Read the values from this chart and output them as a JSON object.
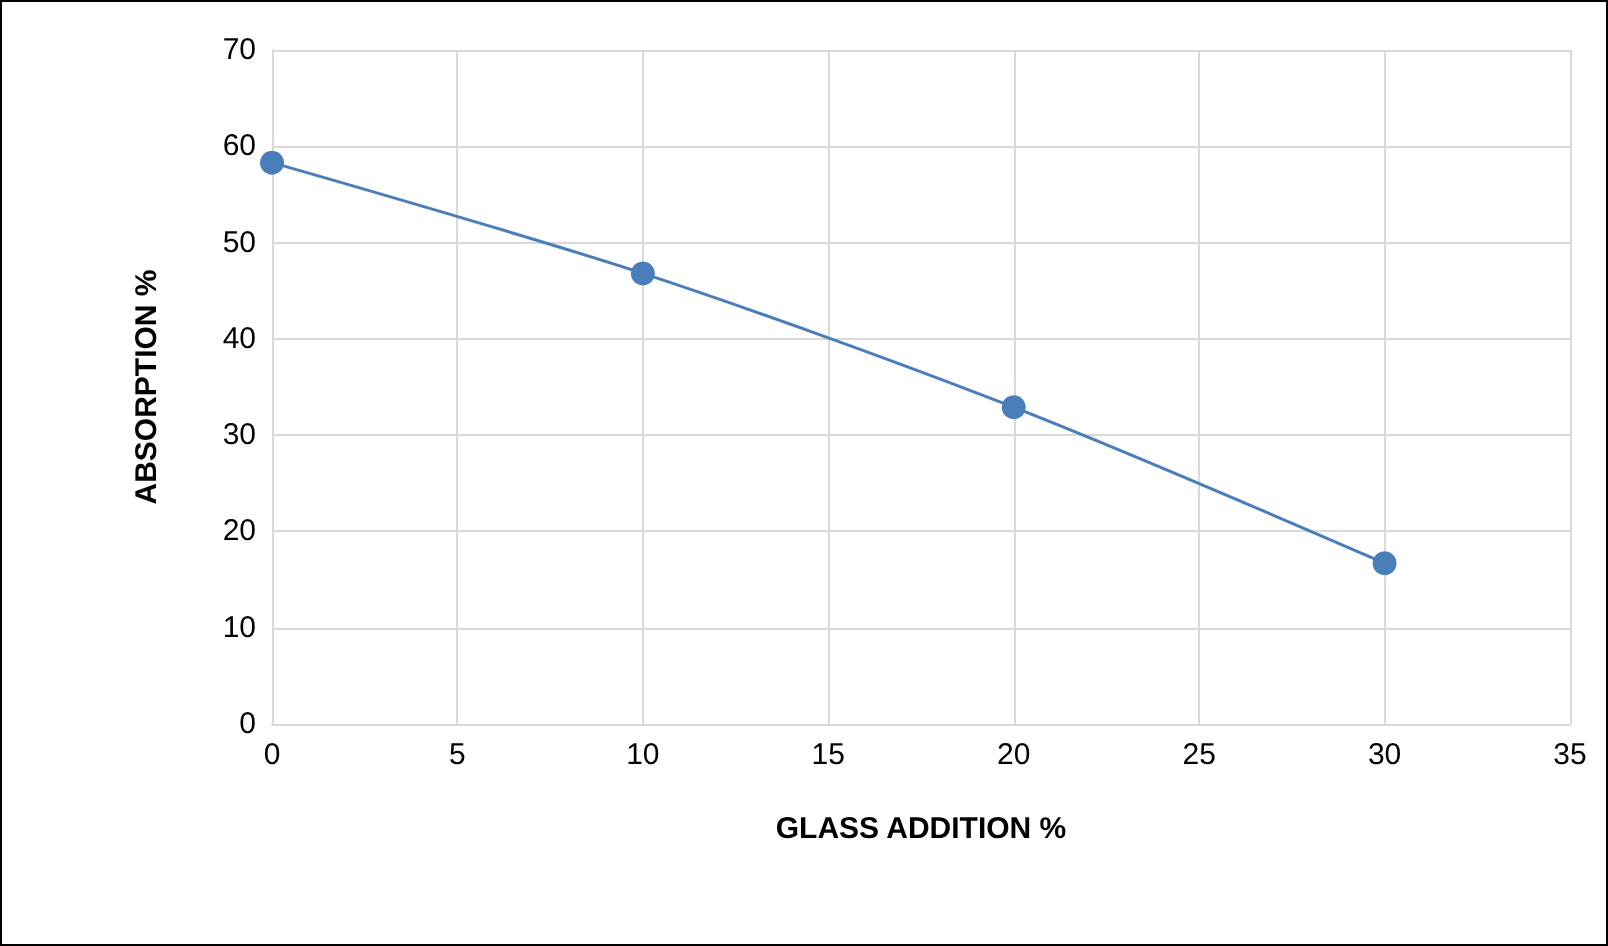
{
  "chart_data": {
    "type": "line",
    "xlabel": "GLASS ADDITION %",
    "ylabel": "ABSORPTION %",
    "x": [
      0,
      10,
      20,
      30
    ],
    "series": [
      {
        "color": "#4a7ebb",
        "values": [
          58.3,
          46.8,
          32.9,
          16.7
        ]
      }
    ],
    "xlim": [
      0,
      35
    ],
    "xticks": [
      0,
      5,
      10,
      15,
      20,
      25,
      30,
      35
    ],
    "ylim": [
      0,
      70
    ],
    "yticks": [
      0,
      10,
      20,
      30,
      40,
      50,
      60,
      70
    ],
    "grid": true,
    "marker": "circle",
    "line_style": "solid"
  }
}
